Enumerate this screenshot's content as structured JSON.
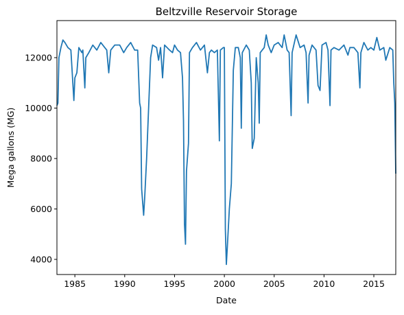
{
  "chart_data": {
    "type": "line",
    "title": "Beltzville Reservoir Storage",
    "xlabel": "Date",
    "ylabel": "Mega gallons (MG)",
    "color": "#1f77b4",
    "x": [
      1983.2,
      1983.3,
      1983.4,
      1983.6,
      1983.8,
      1984.0,
      1984.3,
      1984.6,
      1984.9,
      1985.0,
      1985.2,
      1985.4,
      1985.7,
      1985.8,
      1986.0,
      1986.1,
      1986.4,
      1986.8,
      1987.2,
      1987.6,
      1988.0,
      1988.2,
      1988.4,
      1988.6,
      1989.0,
      1989.5,
      1989.9,
      1990.2,
      1990.6,
      1991.0,
      1991.3,
      1991.5,
      1991.6,
      1991.7,
      1991.9,
      1992.0,
      1992.2,
      1992.4,
      1992.6,
      1992.8,
      1993.2,
      1993.4,
      1993.6,
      1993.8,
      1994.0,
      1994.5,
      1994.8,
      1995.0,
      1995.3,
      1995.6,
      1995.8,
      1995.9,
      1996.0,
      1996.1,
      1996.2,
      1996.4,
      1996.5,
      1996.8,
      1997.2,
      1997.6,
      1998.0,
      1998.3,
      1998.5,
      1998.7,
      1999.0,
      1999.3,
      1999.5,
      1999.6,
      1999.9,
      2000.0,
      2000.1,
      2000.2,
      2000.3,
      2000.5,
      2000.7,
      2000.9,
      2001.1,
      2001.4,
      2001.6,
      2001.7,
      2001.8,
      2002.2,
      2002.5,
      2002.7,
      2002.8,
      2003.0,
      2003.2,
      2003.4,
      2003.5,
      2003.6,
      2004.0,
      2004.2,
      2004.4,
      2004.7,
      2005.0,
      2005.4,
      2005.8,
      2006.0,
      2006.3,
      2006.5,
      2006.7,
      2006.8,
      2007.2,
      2007.6,
      2008.0,
      2008.2,
      2008.4,
      2008.5,
      2008.8,
      2009.2,
      2009.4,
      2009.6,
      2009.8,
      2010.2,
      2010.4,
      2010.6,
      2010.7,
      2011.0,
      2011.5,
      2012.0,
      2012.4,
      2012.6,
      2013.0,
      2013.4,
      2013.6,
      2013.7,
      2014.0,
      2014.4,
      2014.7,
      2015.0,
      2015.3,
      2015.6,
      2016.0,
      2016.2,
      2016.6,
      2016.9,
      2017.0,
      2017.1,
      2017.2
    ],
    "values": [
      10100,
      10200,
      12000,
      12400,
      12700,
      12600,
      12400,
      12300,
      10300,
      11200,
      11400,
      12400,
      12200,
      12300,
      10800,
      12000,
      12200,
      12500,
      12300,
      12600,
      12400,
      12300,
      11400,
      12300,
      12500,
      12500,
      12200,
      12400,
      12600,
      12300,
      12300,
      10200,
      10000,
      6800,
      5750,
      6400,
      8000,
      10000,
      12000,
      12500,
      12400,
      11900,
      12400,
      11200,
      12500,
      12300,
      12200,
      12500,
      12300,
      12200,
      11200,
      9500,
      5400,
      4600,
      7500,
      8600,
      12200,
      12400,
      12600,
      12300,
      12500,
      11400,
      12200,
      12300,
      12200,
      12300,
      8700,
      12300,
      12400,
      12400,
      5200,
      3800,
      4500,
      6000,
      7000,
      11500,
      12400,
      12400,
      12000,
      9200,
      12200,
      12500,
      12300,
      11000,
      8400,
      8800,
      12000,
      11000,
      9400,
      12200,
      12400,
      12900,
      12500,
      12200,
      12500,
      12600,
      12400,
      12900,
      12300,
      12200,
      9700,
      12200,
      12900,
      12400,
      12500,
      12200,
      10200,
      12100,
      12500,
      12300,
      10900,
      10700,
      12500,
      12600,
      12300,
      10100,
      12300,
      12400,
      12300,
      12500,
      12100,
      12400,
      12400,
      12200,
      10800,
      12200,
      12600,
      12300,
      12400,
      12300,
      12800,
      12300,
      12400,
      11900,
      12400,
      12300,
      11000,
      10200,
      7400
    ],
    "xlim": [
      1983.2,
      2017.2
    ],
    "xticks": [
      1985,
      1990,
      1995,
      2000,
      2005,
      2010,
      2015
    ],
    "ylim": [
      3400,
      13470
    ],
    "yticks": [
      4000,
      6000,
      8000,
      10000,
      12000
    ]
  }
}
